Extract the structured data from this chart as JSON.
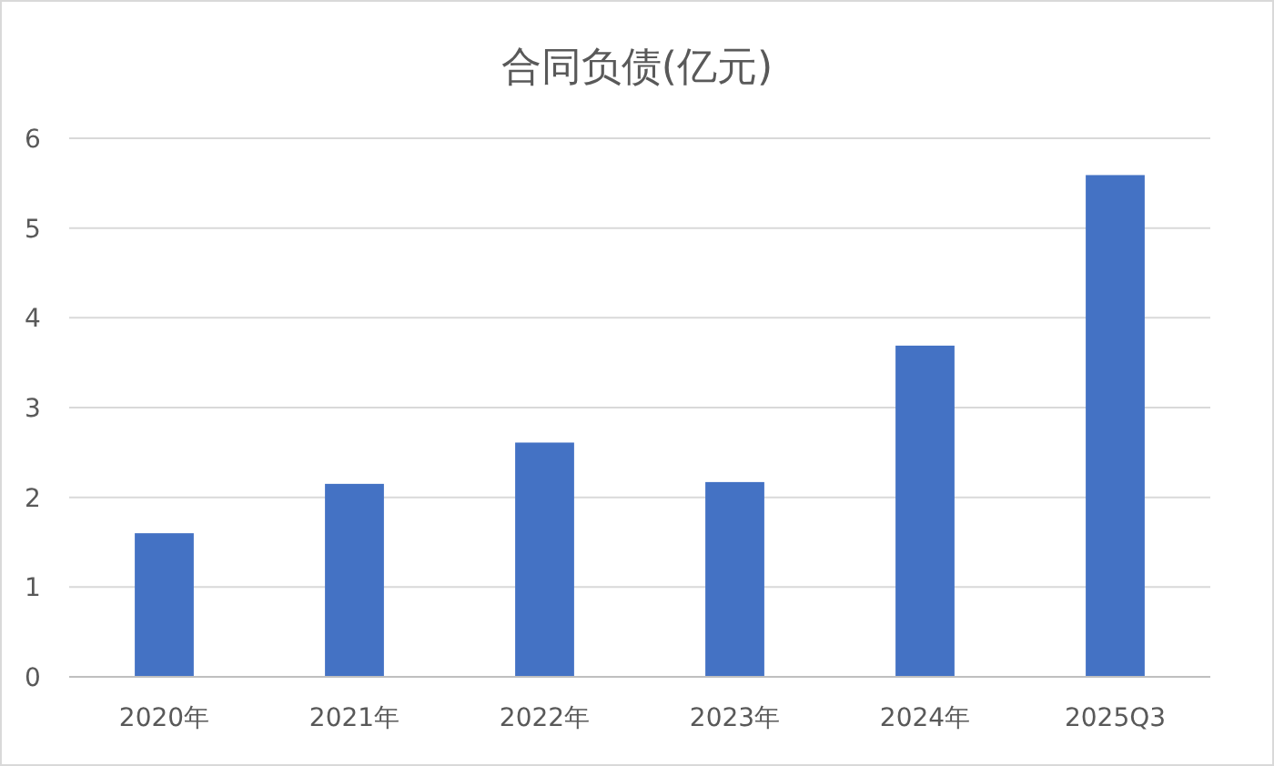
{
  "chart_data": {
    "type": "bar",
    "title": "合同负债(亿元)",
    "categories": [
      "2020年",
      "2021年",
      "2022年",
      "2023年",
      "2024年",
      "2025Q3"
    ],
    "values": [
      1.6,
      2.15,
      2.61,
      2.17,
      3.69,
      5.59
    ],
    "color": "#4472c4",
    "ylim": [
      0,
      6
    ],
    "yticks": [
      0,
      1,
      2,
      3,
      4,
      5,
      6
    ],
    "grid": "y"
  }
}
